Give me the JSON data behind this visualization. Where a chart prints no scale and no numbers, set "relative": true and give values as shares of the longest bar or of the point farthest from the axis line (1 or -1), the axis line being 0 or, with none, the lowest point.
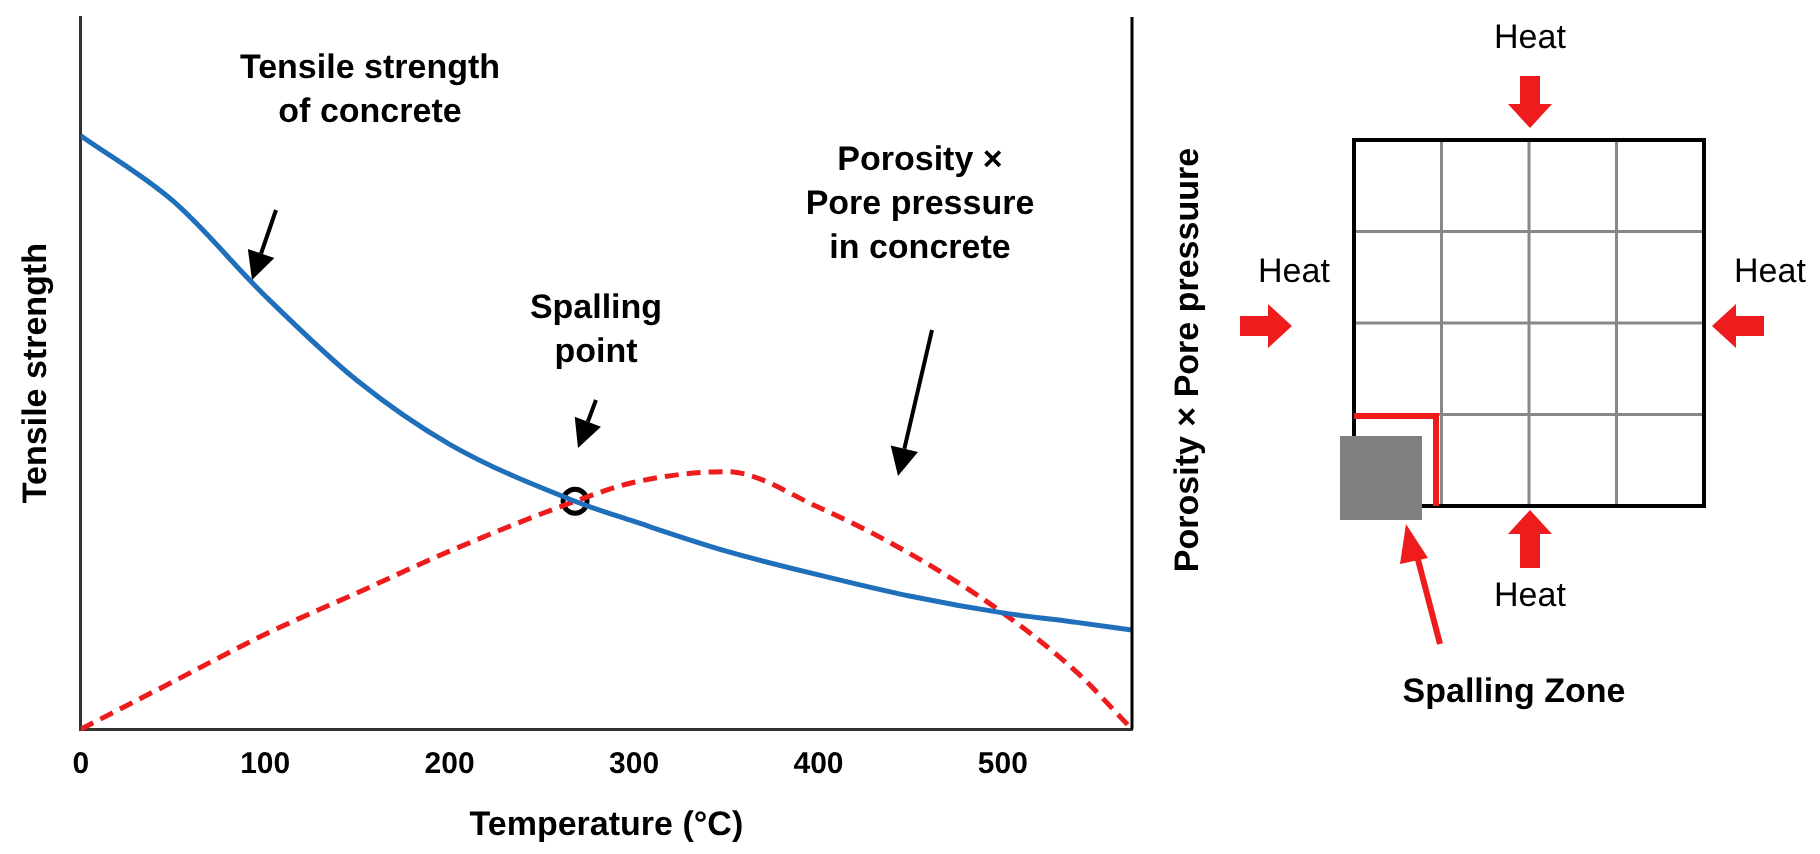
{
  "chart_data": {
    "type": "line",
    "xlabel": "Temperature (°C)",
    "ylabel": "Tensile strength",
    "y2label": "Porosity × Pore pressuure",
    "relative": true,
    "xlim": [
      0,
      570
    ],
    "xticks": [
      0,
      100,
      200,
      300,
      400,
      500
    ],
    "grid": false,
    "legend": false,
    "x": [
      0,
      50,
      100,
      150,
      200,
      268,
      300,
      350,
      400,
      450,
      500,
      540,
      570
    ],
    "series": [
      {
        "color": "#1f6fba",
        "line_style": "solid",
        "marker": "none",
        "values": [
          1,
          0.89,
          0.73,
          0.587,
          0.48,
          0.384,
          0.35,
          0.3,
          0.26,
          0.224,
          0.196,
          0.18,
          0.167
        ]
      },
      {
        "color": "#ee1c1c",
        "line_style": "dashed",
        "marker": "none",
        "values": [
          0,
          0.08,
          0.16,
          0.23,
          0.3,
          0.384,
          0.416,
          0.434,
          0.374,
          0.295,
          0.196,
          0.096,
          0
        ]
      },
      {
        "type": "scatter",
        "color": "#000000",
        "marker": "circle",
        "x": [
          268
        ],
        "values": [
          0.384
        ]
      }
    ],
    "annotations": [
      "Tensile strength of concrete",
      "Spalling point",
      "Porosity × Pore pressure in concrete",
      "Heat",
      "Heat",
      "Heat",
      "Heat",
      "Spalling Zone"
    ]
  }
}
